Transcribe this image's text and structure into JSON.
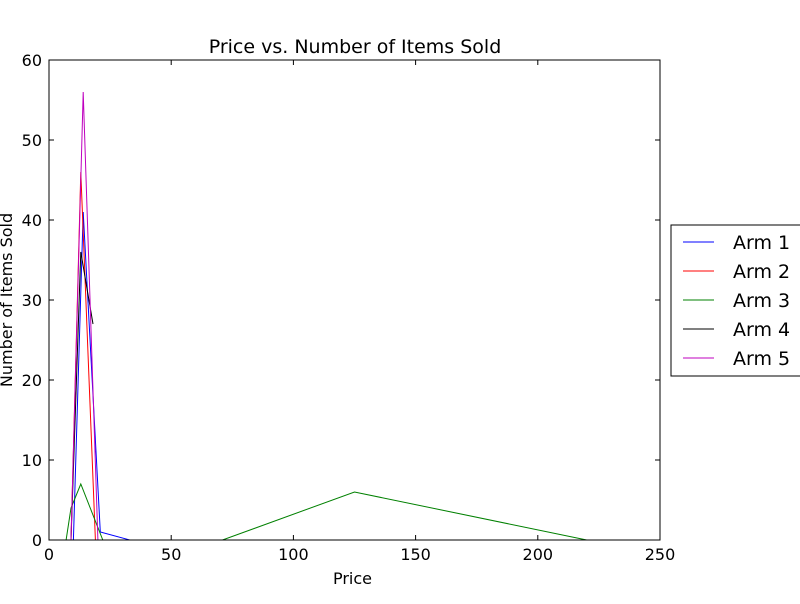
{
  "chart_data": {
    "type": "line",
    "title": "Price vs. Number of Items Sold",
    "xlabel": "Price",
    "ylabel": "Number of Items Sold",
    "xlim": [
      0,
      250
    ],
    "ylim": [
      0,
      60
    ],
    "xticks": [
      0,
      50,
      100,
      150,
      200,
      250
    ],
    "yticks": [
      0,
      10,
      20,
      30,
      40,
      50,
      60
    ],
    "grid": false,
    "legend_position": "right",
    "series": [
      {
        "name": "Arm 1",
        "color": "#0000ff",
        "x": [
          0,
          8,
          10,
          14,
          21,
          33,
          70
        ],
        "y": [
          0,
          0,
          0,
          41,
          1,
          0,
          0
        ]
      },
      {
        "name": "Arm 2",
        "color": "#ff0000",
        "x": [
          0,
          9,
          13,
          19,
          20
        ],
        "y": [
          0,
          0,
          46,
          0,
          0
        ]
      },
      {
        "name": "Arm 3",
        "color": "#008000",
        "x": [
          0,
          7,
          9,
          13,
          22,
          71,
          125,
          220
        ],
        "y": [
          0,
          0,
          4,
          7,
          0,
          0,
          6,
          0
        ]
      },
      {
        "name": "Arm 4",
        "color": "#000000",
        "x": [
          0,
          8,
          9,
          13,
          18
        ],
        "y": [
          0,
          0,
          0,
          36,
          27
        ]
      },
      {
        "name": "Arm 5",
        "color": "#bf00bf",
        "x": [
          0,
          9,
          14,
          20
        ],
        "y": [
          0,
          0,
          56,
          0
        ]
      }
    ]
  }
}
